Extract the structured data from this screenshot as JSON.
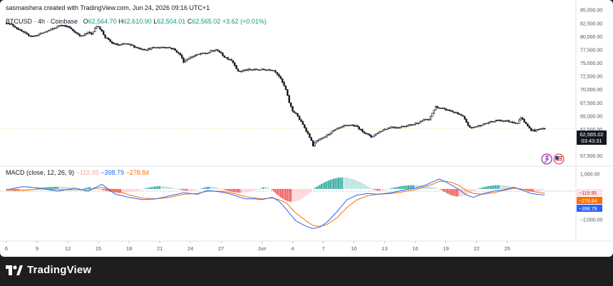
{
  "header": {
    "credit": "sasmaishera created with TradingView.com, Jun 24, 2026 09:16 UTC+1",
    "symbol": "BTCUSD · 4h · Coinbase",
    "open_label": "O",
    "open": "62,564.70",
    "high_label": "H",
    "high": "62,610.90",
    "low_label": "L",
    "low": "62,504.01",
    "close_label": "C",
    "close": "62,565.02",
    "change": "+3.62 (+0.01%)"
  },
  "macd_legend": {
    "name": "MACD (close, 12, 26, 9)",
    "histogram": "−119.95",
    "macd": "−398.79",
    "signal": "−278.84"
  },
  "price_badge": {
    "price": "62,565.02",
    "countdown": "03:43:31"
  },
  "macd_badges": {
    "histogram": "−119.95",
    "signal": "−278.84",
    "macd": "−398.79"
  },
  "footer": {
    "logo_text": "TradingView",
    "logo_mark": "17"
  },
  "colors": {
    "up": "#089981",
    "down": "#131722",
    "macd": "#2962ff",
    "signal": "#ff6d00",
    "hist_pos": "#26a69a",
    "hist_pos_light": "#b2dfdb",
    "hist_neg": "#ef5350",
    "hist_neg_light": "#ffcdd2"
  },
  "chart_data": [
    {
      "type": "candlestick",
      "symbol": "BTCUSD",
      "interval": "4h",
      "exchange": "Coinbase",
      "y_ticks": [
        "85,000.00",
        "82,500.00",
        "80,000.00",
        "77,500.00",
        "75,000.00",
        "72,500.00",
        "70,000.00",
        "67,500.00",
        "65,000.00",
        "62,500.00",
        "60,000.00",
        "57,500.00"
      ],
      "y_tick_values": [
        85000,
        82500,
        80000,
        77500,
        75000,
        72500,
        70000,
        67500,
        65000,
        62500,
        60000,
        57500
      ],
      "ylim": [
        56700,
        85500
      ],
      "x_ticks": [
        "6",
        "9",
        "12",
        "15",
        "18",
        "21",
        "24",
        "27",
        "Jun",
        "4",
        "7",
        "10",
        "13",
        "16",
        "19",
        "22",
        "25"
      ],
      "x_tick_index": [
        0,
        18,
        36,
        54,
        72,
        90,
        108,
        126,
        150,
        168,
        186,
        204,
        222,
        240,
        258,
        276,
        294
      ],
      "last_price": 62565.02,
      "close_path": [
        [
          0,
          82600
        ],
        [
          4,
          82000
        ],
        [
          8,
          81100
        ],
        [
          12,
          80300
        ],
        [
          16,
          80000
        ],
        [
          20,
          80500
        ],
        [
          24,
          81000
        ],
        [
          28,
          81500
        ],
        [
          32,
          82200
        ],
        [
          36,
          81800
        ],
        [
          40,
          80800
        ],
        [
          44,
          80000
        ],
        [
          48,
          80700
        ],
        [
          50,
          80400
        ],
        [
          52,
          81600
        ],
        [
          54,
          81900
        ],
        [
          56,
          80900
        ],
        [
          58,
          79800
        ],
        [
          62,
          78700
        ],
        [
          66,
          78300
        ],
        [
          70,
          78600
        ],
        [
          74,
          78200
        ],
        [
          78,
          77700
        ],
        [
          82,
          77500
        ],
        [
          86,
          77800
        ],
        [
          90,
          77900
        ],
        [
          94,
          78000
        ],
        [
          98,
          77600
        ],
        [
          102,
          76500
        ],
        [
          104,
          75200
        ],
        [
          106,
          75700
        ],
        [
          110,
          76300
        ],
        [
          114,
          76700
        ],
        [
          118,
          76800
        ],
        [
          120,
          77200
        ],
        [
          124,
          77400
        ],
        [
          126,
          76700
        ],
        [
          128,
          76100
        ],
        [
          132,
          75500
        ],
        [
          134,
          74600
        ],
        [
          136,
          73300
        ],
        [
          140,
          73600
        ],
        [
          144,
          73700
        ],
        [
          150,
          73700
        ],
        [
          156,
          73700
        ],
        [
          158,
          73300
        ],
        [
          160,
          72500
        ],
        [
          162,
          71300
        ],
        [
          164,
          69900
        ],
        [
          166,
          67500
        ],
        [
          168,
          65900
        ],
        [
          170,
          65400
        ],
        [
          172,
          64300
        ],
        [
          174,
          63300
        ],
        [
          176,
          62200
        ],
        [
          178,
          61000
        ],
        [
          180,
          59400
        ],
        [
          182,
          60200
        ],
        [
          186,
          60800
        ],
        [
          190,
          61800
        ],
        [
          194,
          62500
        ],
        [
          198,
          63000
        ],
        [
          202,
          63300
        ],
        [
          206,
          62900
        ],
        [
          208,
          62300
        ],
        [
          212,
          61500
        ],
        [
          214,
          61000
        ],
        [
          218,
          61800
        ],
        [
          222,
          62500
        ],
        [
          226,
          62900
        ],
        [
          230,
          62800
        ],
        [
          234,
          63100
        ],
        [
          238,
          63300
        ],
        [
          242,
          63800
        ],
        [
          246,
          64300
        ],
        [
          248,
          64200
        ],
        [
          250,
          65500
        ],
        [
          252,
          66700
        ],
        [
          256,
          66300
        ],
        [
          260,
          66000
        ],
        [
          264,
          65500
        ],
        [
          268,
          64800
        ],
        [
          270,
          63800
        ],
        [
          272,
          62700
        ],
        [
          276,
          63000
        ],
        [
          280,
          63400
        ],
        [
          284,
          63800
        ],
        [
          288,
          64100
        ],
        [
          292,
          64100
        ],
        [
          296,
          63900
        ],
        [
          300,
          63600
        ],
        [
          302,
          64700
        ],
        [
          306,
          63000
        ],
        [
          308,
          62300
        ],
        [
          310,
          62200
        ],
        [
          314,
          62600
        ],
        [
          316,
          62565
        ]
      ]
    },
    {
      "type": "macd",
      "name": "MACD (close, 12, 26, 9)",
      "y_ticks": [
        "1,000.00",
        "−2,000.00"
      ],
      "y_tick_values": [
        1000,
        -2000
      ],
      "ylim": [
        -2950,
        1350
      ],
      "macd_path": [
        [
          0,
          -50
        ],
        [
          10,
          150
        ],
        [
          20,
          50
        ],
        [
          30,
          -150
        ],
        [
          40,
          50
        ],
        [
          48,
          -150
        ],
        [
          56,
          300
        ],
        [
          64,
          -350
        ],
        [
          72,
          -550
        ],
        [
          80,
          -700
        ],
        [
          88,
          -650
        ],
        [
          96,
          -450
        ],
        [
          104,
          -250
        ],
        [
          112,
          -350
        ],
        [
          118,
          -100
        ],
        [
          126,
          -200
        ],
        [
          132,
          -350
        ],
        [
          140,
          -650
        ],
        [
          146,
          -650
        ],
        [
          150,
          -700
        ],
        [
          156,
          -550
        ],
        [
          160,
          -800
        ],
        [
          164,
          -1300
        ],
        [
          170,
          -2100
        ],
        [
          176,
          -2450
        ],
        [
          180,
          -2600
        ],
        [
          184,
          -2500
        ],
        [
          188,
          -2200
        ],
        [
          194,
          -1500
        ],
        [
          200,
          -700
        ],
        [
          206,
          -400
        ],
        [
          212,
          -300
        ],
        [
          218,
          -350
        ],
        [
          226,
          -250
        ],
        [
          232,
          -100
        ],
        [
          240,
          50
        ],
        [
          246,
          250
        ],
        [
          250,
          450
        ],
        [
          254,
          650
        ],
        [
          258,
          450
        ],
        [
          262,
          200
        ],
        [
          266,
          -50
        ],
        [
          270,
          -400
        ],
        [
          274,
          -550
        ],
        [
          280,
          -300
        ],
        [
          286,
          -150
        ],
        [
          292,
          -50
        ],
        [
          298,
          100
        ],
        [
          302,
          -50
        ],
        [
          308,
          -300
        ],
        [
          314,
          -380
        ],
        [
          316,
          -398.79
        ]
      ],
      "signal_path": [
        [
          0,
          -100
        ],
        [
          10,
          -100
        ],
        [
          20,
          0
        ],
        [
          30,
          -50
        ],
        [
          40,
          -50
        ],
        [
          48,
          -50
        ],
        [
          56,
          100
        ],
        [
          64,
          -100
        ],
        [
          72,
          -400
        ],
        [
          80,
          -600
        ],
        [
          88,
          -650
        ],
        [
          96,
          -550
        ],
        [
          104,
          -350
        ],
        [
          112,
          -300
        ],
        [
          118,
          -150
        ],
        [
          126,
          -150
        ],
        [
          132,
          -250
        ],
        [
          140,
          -500
        ],
        [
          146,
          -600
        ],
        [
          150,
          -650
        ],
        [
          156,
          -600
        ],
        [
          160,
          -700
        ],
        [
          164,
          -900
        ],
        [
          170,
          -1600
        ],
        [
          176,
          -2100
        ],
        [
          180,
          -2400
        ],
        [
          184,
          -2450
        ],
        [
          188,
          -2350
        ],
        [
          194,
          -1900
        ],
        [
          200,
          -1200
        ],
        [
          206,
          -700
        ],
        [
          212,
          -450
        ],
        [
          218,
          -350
        ],
        [
          226,
          -300
        ],
        [
          232,
          -200
        ],
        [
          240,
          -50
        ],
        [
          246,
          150
        ],
        [
          250,
          300
        ],
        [
          254,
          500
        ],
        [
          258,
          500
        ],
        [
          262,
          400
        ],
        [
          266,
          200
        ],
        [
          270,
          -100
        ],
        [
          274,
          -300
        ],
        [
          280,
          -350
        ],
        [
          286,
          -250
        ],
        [
          292,
          -100
        ],
        [
          298,
          50
        ],
        [
          302,
          0
        ],
        [
          308,
          -150
        ],
        [
          314,
          -250
        ],
        [
          316,
          -278.84
        ]
      ],
      "histogram_pattern": [
        {
          "from": 0,
          "to": 16,
          "sign": -1,
          "peak": 100
        },
        {
          "from": 17,
          "to": 44,
          "sign": 1,
          "peak": 150
        },
        {
          "from": 45,
          "to": 54,
          "sign": 1,
          "peak": 120
        },
        {
          "from": 55,
          "to": 80,
          "sign": -1,
          "peak": 260
        },
        {
          "from": 81,
          "to": 100,
          "sign": 1,
          "peak": 180
        },
        {
          "from": 101,
          "to": 113,
          "sign": -1,
          "peak": 120
        },
        {
          "from": 114,
          "to": 126,
          "sign": 1,
          "peak": 150
        },
        {
          "from": 127,
          "to": 148,
          "sign": -1,
          "peak": 250
        },
        {
          "from": 149,
          "to": 155,
          "sign": 1,
          "peak": 120
        },
        {
          "from": 156,
          "to": 180,
          "sign": -1,
          "peak": 850
        },
        {
          "from": 181,
          "to": 214,
          "sign": 1,
          "peak": 750
        },
        {
          "from": 215,
          "to": 224,
          "sign": -1,
          "peak": 120
        },
        {
          "from": 225,
          "to": 254,
          "sign": 1,
          "peak": 250
        },
        {
          "from": 255,
          "to": 276,
          "sign": -1,
          "peak": 500
        },
        {
          "from": 277,
          "to": 302,
          "sign": 1,
          "peak": 250
        },
        {
          "from": 303,
          "to": 316,
          "sign": -1,
          "peak": 180
        }
      ]
    }
  ]
}
